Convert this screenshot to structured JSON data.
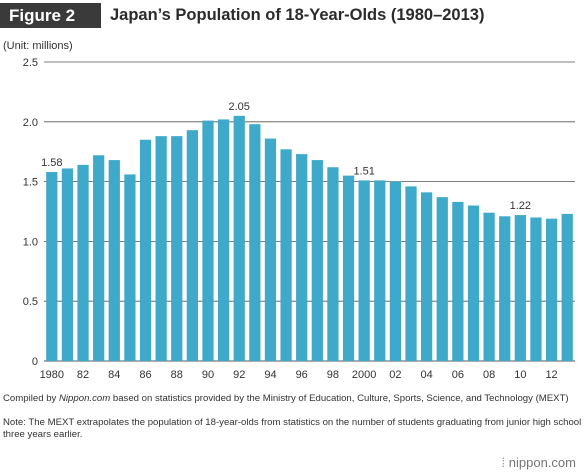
{
  "header": {
    "badge": "Figure 2",
    "title": "Japan’s Population of 18-Year-Olds (1980–2013)"
  },
  "chart_data": {
    "type": "bar",
    "unit_label": "(Unit: millions)",
    "categories": [
      1980,
      1981,
      1982,
      1983,
      1984,
      1985,
      1986,
      1987,
      1988,
      1989,
      1990,
      1991,
      1992,
      1993,
      1994,
      1995,
      1996,
      1997,
      1998,
      1999,
      2000,
      2001,
      2002,
      2003,
      2004,
      2005,
      2006,
      2007,
      2008,
      2009,
      2010,
      2011,
      2012,
      2013
    ],
    "values": [
      1.58,
      1.61,
      1.64,
      1.72,
      1.68,
      1.56,
      1.85,
      1.88,
      1.88,
      1.93,
      2.01,
      2.02,
      2.05,
      1.98,
      1.86,
      1.77,
      1.73,
      1.68,
      1.62,
      1.55,
      1.51,
      1.51,
      1.5,
      1.46,
      1.41,
      1.37,
      1.33,
      1.3,
      1.24,
      1.21,
      1.22,
      1.2,
      1.19,
      1.23
    ],
    "x_tick_labels": [
      "1980",
      "82",
      "84",
      "86",
      "88",
      "90",
      "92",
      "94",
      "96",
      "98",
      "2000",
      "02",
      "04",
      "06",
      "08",
      "10",
      "12"
    ],
    "y_ticks": [
      "0",
      "0.5",
      "1.0",
      "1.5",
      "2.0",
      "2.5"
    ],
    "ylim": [
      0,
      2.5
    ],
    "data_labels": [
      {
        "year": 1980,
        "text": "1.58"
      },
      {
        "year": 1992,
        "text": "2.05"
      },
      {
        "year": 2000,
        "text": "1.51"
      },
      {
        "year": 2010,
        "text": "1.22"
      }
    ],
    "bar_color": "#3fa9c9",
    "grid": true
  },
  "notes": {
    "compiled_prefix": "Compiled by ",
    "compiled_source": "Nippon.com",
    "compiled_rest": " based on statistics provided by the Ministry of Education, Culture, Sports, Science, and Technology (MEXT)",
    "note": "Note: The MEXT extrapolates the population of 18-year-olds from statistics on the number of students graduating from junior high school three years earlier."
  },
  "logo": {
    "text": "nippon.com",
    "icon": "nippon-logo-mark"
  }
}
